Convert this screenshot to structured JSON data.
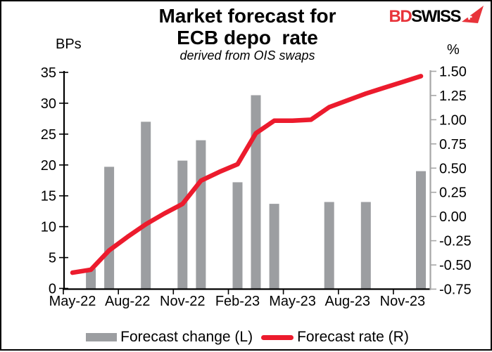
{
  "header": {
    "title_line1": "Market forecast for",
    "title_line2": "ECB depo  rate",
    "subtitle": "derived from OIS swaps"
  },
  "logo": {
    "part1": "BD",
    "part2": "SWISS",
    "part1_color": "#e8333a",
    "part2_color": "#000000",
    "arrow_color": "#e8333a"
  },
  "units": {
    "left": "BPs",
    "right": "%"
  },
  "legend": [
    {
      "label": "Forecast change (L)",
      "swatch": "bar"
    },
    {
      "label": "Forecast rate (R)",
      "swatch": "line"
    }
  ],
  "chart_data": {
    "type": "combo",
    "title": "Market forecast for ECB depo rate",
    "subtitle": "derived from OIS swaps",
    "categories": [
      "May-22",
      "Jun-22",
      "Jul-22",
      "Aug-22",
      "Sep-22",
      "Oct-22",
      "Nov-22",
      "Dec-22",
      "Jan-23",
      "Feb-23",
      "Mar-23",
      "Apr-23",
      "May-23",
      "Jun-23",
      "Jul-23",
      "Aug-23",
      "Sep-23",
      "Oct-23",
      "Nov-23",
      "Dec-23"
    ],
    "x_tick_labels": [
      "May-22",
      "Aug-22",
      "Nov-22",
      "Feb-23",
      "May-23",
      "Aug-23",
      "Nov-23"
    ],
    "axes": {
      "left": {
        "unit": "BPs",
        "min": 0,
        "max": 35,
        "step": 5,
        "tick_labels": [
          "0",
          "5",
          "10",
          "15",
          "20",
          "25",
          "30",
          "35"
        ],
        "color": "#000000"
      },
      "right": {
        "unit": "%",
        "min": -0.75,
        "max": 1.5,
        "step": 0.25,
        "tick_labels": [
          "-0.75",
          "-0.50",
          "-0.25",
          "0.00",
          "0.25",
          "0.50",
          "0.75",
          "1.00",
          "1.25",
          "1.50"
        ],
        "color": "#a6a6a6"
      }
    },
    "series": [
      {
        "name": "Forecast change (L)",
        "type": "bar",
        "axis": "left",
        "color": "#9c9ea1",
        "points": [
          [
            "Jun-22",
            3.2
          ],
          [
            "Jul-22",
            19.7
          ],
          [
            "Sep-22",
            27.0
          ],
          [
            "Nov-22",
            20.7
          ],
          [
            "Dec-22",
            24.0
          ],
          [
            "Feb-23",
            17.2
          ],
          [
            "Mar-23",
            31.3
          ],
          [
            "Apr-23",
            13.7
          ],
          [
            "Jul-23",
            14.0
          ],
          [
            "Sep-23",
            14.0
          ],
          [
            "Dec-23",
            19.0
          ]
        ]
      },
      {
        "name": "Forecast rate (R)",
        "type": "line",
        "axis": "right",
        "color": "#ec1b2d",
        "values": [
          -0.58,
          -0.55,
          -0.35,
          -0.21,
          -0.08,
          0.03,
          0.13,
          0.37,
          0.46,
          0.54,
          0.86,
          0.99,
          0.99,
          1.0,
          1.13,
          1.2,
          1.27,
          1.33,
          1.39,
          1.45
        ]
      }
    ]
  }
}
